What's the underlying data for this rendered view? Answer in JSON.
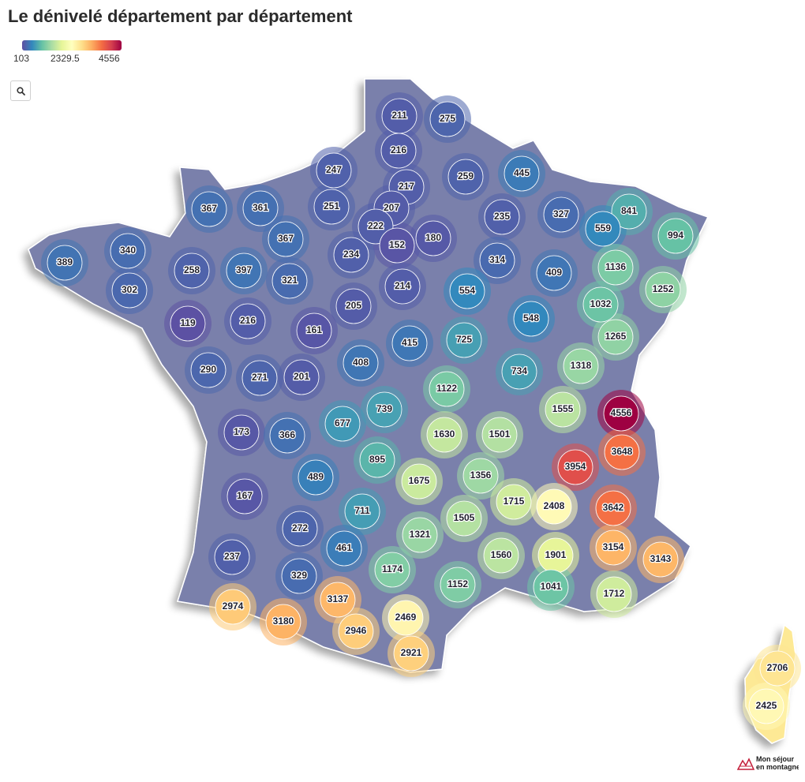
{
  "title": "Le dénivelé département par département",
  "legend": {
    "min_label": "103",
    "mid_label": "2329.5",
    "max_label": "4556",
    "min": 103,
    "max": 4556,
    "colors": [
      "#5e4fa2",
      "#3288bd",
      "#66c2a5",
      "#abdda4",
      "#e6f598",
      "#ffffbf",
      "#fee08b",
      "#fdae61",
      "#f46d43",
      "#d53e4f",
      "#9e0142"
    ]
  },
  "search_icon": "search-icon",
  "logo": {
    "line1": "Mon séjour",
    "line2": "en montagne",
    "accent": "#c41e3a"
  },
  "map": {
    "land_color": "#8a8fb0",
    "departments": [
      {
        "value": 211
      },
      {
        "value": 275
      },
      {
        "value": 216
      },
      {
        "value": 247
      },
      {
        "value": 259
      },
      {
        "value": 445
      },
      {
        "value": 217
      },
      {
        "value": 367
      },
      {
        "value": 361
      },
      {
        "value": 251
      },
      {
        "value": 207
      },
      {
        "value": 235
      },
      {
        "value": 327
      },
      {
        "value": 841
      },
      {
        "value": 222
      },
      {
        "value": 559
      },
      {
        "value": 994
      },
      {
        "value": 367
      },
      {
        "value": 340
      },
      {
        "value": 389
      },
      {
        "value": 152
      },
      {
        "value": 180
      },
      {
        "value": 234
      },
      {
        "value": 314
      },
      {
        "value": 258
      },
      {
        "value": 397
      },
      {
        "value": 321
      },
      {
        "value": 1136
      },
      {
        "value": 409
      },
      {
        "value": 302
      },
      {
        "value": 214
      },
      {
        "value": 554
      },
      {
        "value": 1252
      },
      {
        "value": 1032
      },
      {
        "value": 205
      },
      {
        "value": 119
      },
      {
        "value": 216
      },
      {
        "value": 161
      },
      {
        "value": 548
      },
      {
        "value": 415
      },
      {
        "value": 725
      },
      {
        "value": 1265
      },
      {
        "value": 408
      },
      {
        "value": 290
      },
      {
        "value": 734
      },
      {
        "value": 1318
      },
      {
        "value": 271
      },
      {
        "value": 201
      },
      {
        "value": 1122
      },
      {
        "value": 739
      },
      {
        "value": 1555
      },
      {
        "value": 4556
      },
      {
        "value": 173
      },
      {
        "value": 677
      },
      {
        "value": 1630
      },
      {
        "value": 1501
      },
      {
        "value": 366
      },
      {
        "value": 3648
      },
      {
        "value": 895
      },
      {
        "value": 3954
      },
      {
        "value": 1356
      },
      {
        "value": 489
      },
      {
        "value": 1675
      },
      {
        "value": 167
      },
      {
        "value": 1715
      },
      {
        "value": 711
      },
      {
        "value": 2408
      },
      {
        "value": 3642
      },
      {
        "value": 1505
      },
      {
        "value": 272
      },
      {
        "value": 1321
      },
      {
        "value": 461
      },
      {
        "value": 3154
      },
      {
        "value": 237
      },
      {
        "value": 1560
      },
      {
        "value": 1901
      },
      {
        "value": 3143
      },
      {
        "value": 1174
      },
      {
        "value": 329
      },
      {
        "value": 1152
      },
      {
        "value": 1041
      },
      {
        "value": 3137
      },
      {
        "value": 1712
      },
      {
        "value": 2974
      },
      {
        "value": 2469
      },
      {
        "value": 3180
      },
      {
        "value": 2946
      },
      {
        "value": 2921
      },
      {
        "value": 2706
      },
      {
        "value": 2425
      }
    ]
  }
}
